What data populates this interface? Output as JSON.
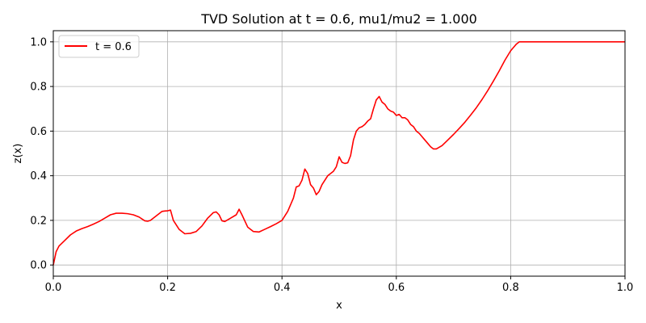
{
  "chart_data": {
    "type": "line",
    "title": "TVD Solution at t = 0.6, mu1/mu2 = 1.000",
    "xlabel": "x",
    "ylabel": "z(x)",
    "xlim": [
      0.0,
      1.0
    ],
    "ylim": [
      -0.05,
      1.05
    ],
    "grid": true,
    "legend_placement": "top-left",
    "x_ticks": [
      "0.0",
      "0.2",
      "0.4",
      "0.6",
      "0.8",
      "1.0"
    ],
    "x_tick_values": [
      0.0,
      0.2,
      0.4,
      0.6,
      0.8,
      1.0
    ],
    "y_ticks": [
      "0.0",
      "0.2",
      "0.4",
      "0.6",
      "0.8",
      "1.0"
    ],
    "y_tick_values": [
      0.0,
      0.2,
      0.4,
      0.6,
      0.8,
      1.0
    ],
    "series": [
      {
        "name": "t = 0.6",
        "color": "#ff0000",
        "x": [
          0.0,
          0.005,
          0.01,
          0.02,
          0.03,
          0.04,
          0.05,
          0.06,
          0.07,
          0.08,
          0.09,
          0.1,
          0.11,
          0.12,
          0.13,
          0.14,
          0.15,
          0.16,
          0.165,
          0.17,
          0.18,
          0.19,
          0.195,
          0.2,
          0.205,
          0.21,
          0.22,
          0.23,
          0.24,
          0.25,
          0.26,
          0.27,
          0.28,
          0.285,
          0.29,
          0.295,
          0.3,
          0.31,
          0.32,
          0.325,
          0.33,
          0.34,
          0.35,
          0.36,
          0.37,
          0.38,
          0.39,
          0.4,
          0.41,
          0.42,
          0.425,
          0.43,
          0.435,
          0.44,
          0.445,
          0.45,
          0.455,
          0.46,
          0.465,
          0.47,
          0.48,
          0.485,
          0.49,
          0.495,
          0.5,
          0.505,
          0.51,
          0.515,
          0.52,
          0.525,
          0.53,
          0.535,
          0.54,
          0.545,
          0.55,
          0.555,
          0.56,
          0.565,
          0.57,
          0.575,
          0.58,
          0.585,
          0.59,
          0.595,
          0.6,
          0.605,
          0.61,
          0.615,
          0.62,
          0.625,
          0.63,
          0.635,
          0.64,
          0.645,
          0.65,
          0.655,
          0.66,
          0.665,
          0.67,
          0.68,
          0.69,
          0.7,
          0.71,
          0.72,
          0.73,
          0.74,
          0.75,
          0.76,
          0.77,
          0.78,
          0.79,
          0.8,
          0.81,
          0.815,
          0.82,
          0.85,
          0.9,
          0.95,
          1.0
        ],
        "y": [
          0.0,
          0.06,
          0.085,
          0.11,
          0.135,
          0.152,
          0.163,
          0.172,
          0.183,
          0.195,
          0.21,
          0.225,
          0.232,
          0.232,
          0.23,
          0.225,
          0.215,
          0.198,
          0.196,
          0.2,
          0.22,
          0.24,
          0.242,
          0.243,
          0.246,
          0.2,
          0.16,
          0.14,
          0.142,
          0.15,
          0.175,
          0.21,
          0.235,
          0.238,
          0.225,
          0.198,
          0.195,
          0.21,
          0.225,
          0.25,
          0.225,
          0.17,
          0.15,
          0.148,
          0.16,
          0.172,
          0.185,
          0.2,
          0.24,
          0.3,
          0.35,
          0.355,
          0.38,
          0.43,
          0.41,
          0.36,
          0.345,
          0.315,
          0.33,
          0.36,
          0.4,
          0.41,
          0.42,
          0.44,
          0.485,
          0.46,
          0.455,
          0.458,
          0.49,
          0.56,
          0.6,
          0.615,
          0.62,
          0.63,
          0.645,
          0.655,
          0.7,
          0.74,
          0.755,
          0.73,
          0.72,
          0.7,
          0.69,
          0.685,
          0.67,
          0.675,
          0.66,
          0.66,
          0.65,
          0.63,
          0.62,
          0.6,
          0.59,
          0.575,
          0.56,
          0.545,
          0.53,
          0.52,
          0.52,
          0.535,
          0.56,
          0.585,
          0.612,
          0.64,
          0.672,
          0.705,
          0.742,
          0.782,
          0.825,
          0.87,
          0.918,
          0.96,
          0.99,
          1.0,
          1.0,
          1.0,
          1.0,
          1.0,
          1.0
        ]
      }
    ]
  }
}
